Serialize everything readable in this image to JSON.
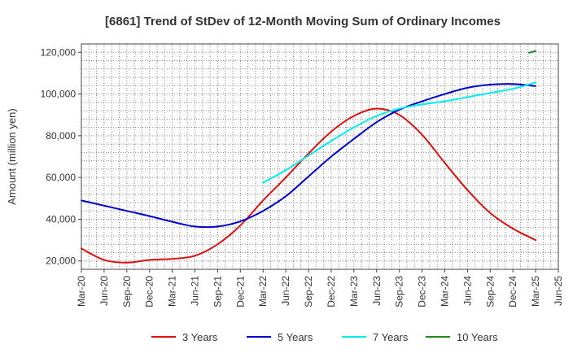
{
  "chart_data": {
    "type": "line",
    "title": "[6861]  Trend of StDev of 12-Month Moving Sum of Ordinary Incomes",
    "xlabel": "",
    "ylabel": "Amount (million yen)",
    "x_ticks": [
      "Mar-20",
      "Jun-20",
      "Sep-20",
      "Dec-20",
      "Mar-21",
      "Jun-21",
      "Sep-21",
      "Dec-21",
      "Mar-22",
      "Jun-22",
      "Sep-22",
      "Dec-22",
      "Mar-23",
      "Jun-23",
      "Sep-23",
      "Dec-23",
      "Mar-24",
      "Jun-24",
      "Sep-24",
      "Dec-24",
      "Mar-25",
      "Jun-25"
    ],
    "y_ticks": [
      "20,000",
      "40,000",
      "60,000",
      "80,000",
      "100,000",
      "120,000"
    ],
    "ylim": [
      16000,
      124000
    ],
    "grid": true,
    "legend_position": "bottom",
    "series": [
      {
        "name": "3 Years",
        "color": "#dd1111",
        "points": [
          [
            "Mar-20",
            26000
          ],
          [
            "Jun-20",
            20500
          ],
          [
            "Sep-20",
            19200
          ],
          [
            "Dec-20",
            20500
          ],
          [
            "Mar-21",
            21000
          ],
          [
            "Jun-21",
            22500
          ],
          [
            "Sep-21",
            28000
          ],
          [
            "Dec-21",
            37000
          ],
          [
            "Mar-22",
            49000
          ],
          [
            "Jun-22",
            60000
          ],
          [
            "Sep-22",
            71500
          ],
          [
            "Dec-22",
            82000
          ],
          [
            "Mar-23",
            89500
          ],
          [
            "Jun-23",
            93000
          ],
          [
            "Sep-23",
            90000
          ],
          [
            "Dec-23",
            80500
          ],
          [
            "Mar-24",
            67000
          ],
          [
            "Jun-24",
            54000
          ],
          [
            "Sep-24",
            43000
          ],
          [
            "Dec-24",
            35500
          ],
          [
            "Mar-25",
            30000
          ]
        ]
      },
      {
        "name": "5 Years",
        "color": "#0000cc",
        "points": [
          [
            "Mar-20",
            49000
          ],
          [
            "Jun-20",
            46500
          ],
          [
            "Sep-20",
            44000
          ],
          [
            "Dec-20",
            41500
          ],
          [
            "Mar-21",
            38800
          ],
          [
            "Jun-21",
            36500
          ],
          [
            "Sep-21",
            36500
          ],
          [
            "Dec-21",
            39000
          ],
          [
            "Mar-22",
            44000
          ],
          [
            "Jun-22",
            51000
          ],
          [
            "Sep-22",
            60500
          ],
          [
            "Dec-22",
            70000
          ],
          [
            "Mar-23",
            78500
          ],
          [
            "Jun-23",
            86500
          ],
          [
            "Sep-23",
            92500
          ],
          [
            "Dec-23",
            96500
          ],
          [
            "Mar-24",
            100000
          ],
          [
            "Jun-24",
            103000
          ],
          [
            "Sep-24",
            104500
          ],
          [
            "Dec-24",
            104800
          ],
          [
            "Mar-25",
            103800
          ]
        ]
      },
      {
        "name": "7 Years",
        "color": "#00eeee",
        "points": [
          [
            "Mar-22",
            57500
          ],
          [
            "Jun-22",
            63500
          ],
          [
            "Sep-22",
            70500
          ],
          [
            "Dec-22",
            77500
          ],
          [
            "Mar-23",
            84000
          ],
          [
            "Jun-23",
            89500
          ],
          [
            "Sep-23",
            93000
          ],
          [
            "Dec-23",
            95000
          ],
          [
            "Mar-24",
            96500
          ],
          [
            "Jun-24",
            98500
          ],
          [
            "Sep-24",
            100500
          ],
          [
            "Dec-24",
            102500
          ],
          [
            "Mar-25",
            105500
          ]
        ]
      },
      {
        "name": "10 Years",
        "color": "#228822",
        "points": [
          [
            "Mar-25",
            119800
          ],
          [
            "Mar-25",
            120600
          ]
        ]
      }
    ]
  }
}
